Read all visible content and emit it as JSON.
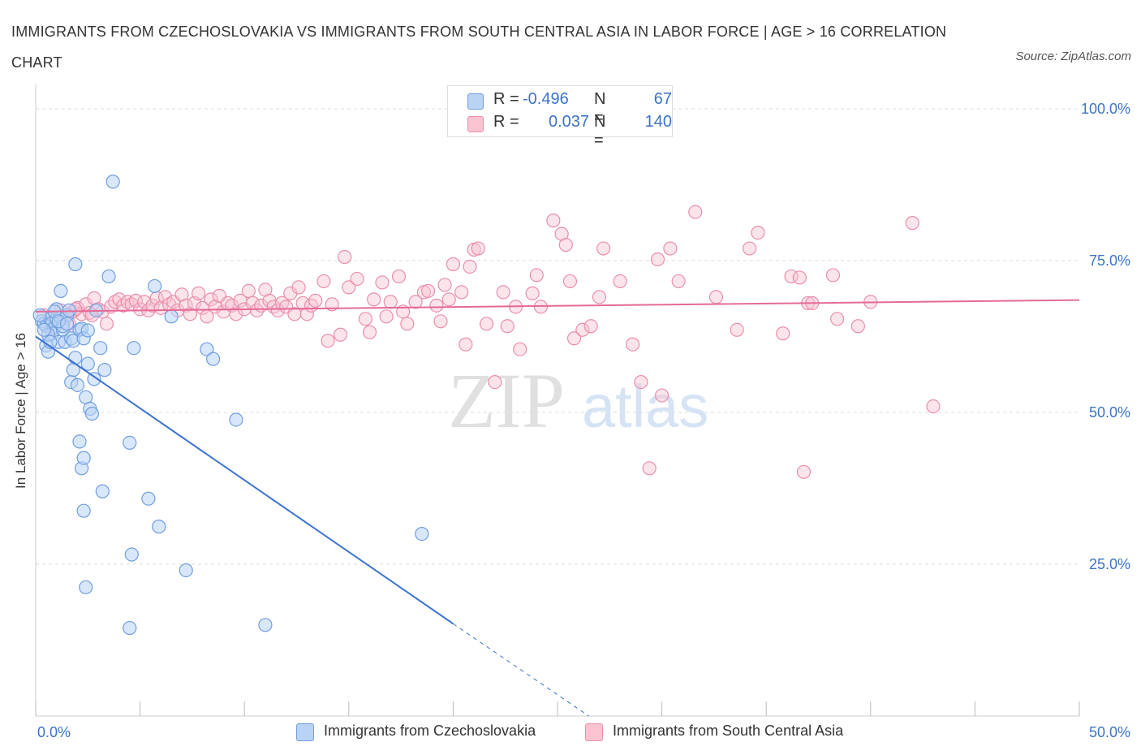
{
  "title": "IMMIGRANTS FROM CZECHOSLOVAKIA VS IMMIGRANTS FROM SOUTH CENTRAL ASIA IN LABOR FORCE | AGE > 16 CORRELATION CHART",
  "source": "Source: ZipAtlas.com",
  "watermark": {
    "zip": "ZIP",
    "atlas": "atlas"
  },
  "legend": {
    "r_label": "R =",
    "n_label": "N =",
    "rows": [
      {
        "r": "-0.496",
        "n": "67",
        "fill": "#b9d3f5",
        "stroke": "#6f9ee0"
      },
      {
        "r": "0.037",
        "n": "140",
        "fill": "#f9c3d2",
        "stroke": "#ea8fab"
      }
    ]
  },
  "bottom_legend": [
    {
      "label": "Immigrants from Czechoslovakia",
      "fill": "#b9d3f5",
      "stroke": "#6f9ee0"
    },
    {
      "label": "Immigrants from South Central Asia",
      "fill": "#f9c3d2",
      "stroke": "#ea8fab"
    }
  ],
  "colors": {
    "blue_line": "#3a73d0",
    "pink_line": "#e56a96",
    "axis_text": "#3a73c9",
    "grid": "#dddddd"
  },
  "chart_data": {
    "type": "scatter",
    "title": "IMMIGRANTS FROM CZECHOSLOVAKIA VS IMMIGRANTS FROM SOUTH CENTRAL ASIA IN LABOR FORCE | AGE > 16 CORRELATION CHART",
    "ylabel": "In Labor Force | Age > 16",
    "xlabel": "",
    "xlim": [
      0,
      50
    ],
    "ylim": [
      0,
      100
    ],
    "x_tick_labels": [
      "0.0%",
      "50.0%"
    ],
    "y_tick_values": [
      25,
      50,
      75,
      100
    ],
    "y_tick_labels": [
      "25.0%",
      "50.0%",
      "75.0%",
      "100.0%"
    ],
    "grid": "horizontal dashed",
    "series": [
      {
        "name": "Immigrants from Czechoslovakia",
        "color": "#6f9ee0",
        "trend": {
          "x": [
            0.0,
            20.0
          ],
          "y": [
            62.5,
            15.2
          ],
          "dashed_to": [
            26.5,
            0.0
          ]
        },
        "points": [
          [
            0.3,
            65.0
          ],
          [
            0.4,
            64.6
          ],
          [
            0.5,
            64.2
          ],
          [
            0.7,
            65.4
          ],
          [
            0.8,
            64.8
          ],
          [
            0.9,
            64.0
          ],
          [
            1.0,
            65.3
          ],
          [
            0.5,
            61.0
          ],
          [
            0.6,
            60.0
          ],
          [
            0.8,
            63.0
          ],
          [
            1.0,
            67.0
          ],
          [
            1.1,
            61.6
          ],
          [
            1.2,
            65.6
          ],
          [
            1.3,
            63.6
          ],
          [
            1.4,
            61.6
          ],
          [
            1.5,
            66.0
          ],
          [
            1.6,
            66.8
          ],
          [
            1.2,
            70.0
          ],
          [
            1.7,
            62.2
          ],
          [
            1.8,
            61.8
          ],
          [
            1.7,
            55.0
          ],
          [
            1.8,
            57.0
          ],
          [
            1.9,
            59.0
          ],
          [
            2.0,
            54.5
          ],
          [
            1.9,
            74.4
          ],
          [
            2.1,
            63.6
          ],
          [
            2.2,
            63.8
          ],
          [
            2.3,
            62.2
          ],
          [
            2.5,
            63.5
          ],
          [
            2.4,
            52.5
          ],
          [
            2.5,
            58.0
          ],
          [
            2.6,
            50.6
          ],
          [
            2.7,
            49.8
          ],
          [
            2.8,
            55.5
          ],
          [
            2.9,
            66.8
          ],
          [
            3.1,
            60.6
          ],
          [
            3.3,
            57.0
          ],
          [
            2.1,
            45.2
          ],
          [
            2.2,
            40.8
          ],
          [
            2.3,
            42.5
          ],
          [
            2.3,
            33.8
          ],
          [
            3.2,
            37.0
          ],
          [
            3.5,
            72.4
          ],
          [
            3.7,
            88.0
          ],
          [
            4.5,
            45.0
          ],
          [
            4.7,
            60.6
          ],
          [
            4.6,
            26.6
          ],
          [
            4.5,
            14.5
          ],
          [
            5.4,
            35.8
          ],
          [
            5.7,
            70.8
          ],
          [
            5.9,
            31.2
          ],
          [
            6.5,
            65.8
          ],
          [
            7.2,
            24.0
          ],
          [
            8.2,
            60.4
          ],
          [
            8.5,
            58.8
          ],
          [
            9.6,
            48.8
          ],
          [
            11.0,
            15.0
          ],
          [
            18.5,
            30.0
          ],
          [
            2.4,
            21.2
          ],
          [
            0.9,
            66.6
          ],
          [
            1.3,
            64.2
          ],
          [
            0.6,
            62.8
          ],
          [
            1.1,
            65.0
          ],
          [
            0.2,
            66.0
          ],
          [
            0.4,
            63.6
          ],
          [
            0.7,
            61.6
          ],
          [
            1.5,
            64.6
          ]
        ]
      },
      {
        "name": "Immigrants from South Central Asia",
        "color": "#ea8fab",
        "trend": {
          "x": [
            0.0,
            50.0
          ],
          "y": [
            66.6,
            68.5
          ]
        },
        "points": [
          [
            0.4,
            66.0
          ],
          [
            0.6,
            64.2
          ],
          [
            0.8,
            63.8
          ],
          [
            1.0,
            65.2
          ],
          [
            1.2,
            66.8
          ],
          [
            1.4,
            65.4
          ],
          [
            1.6,
            64.6
          ],
          [
            1.8,
            66.6
          ],
          [
            2.0,
            67.2
          ],
          [
            2.2,
            66.2
          ],
          [
            2.4,
            67.8
          ],
          [
            2.6,
            66.4
          ],
          [
            2.8,
            68.8
          ],
          [
            3.0,
            67.0
          ],
          [
            3.2,
            66.6
          ],
          [
            3.4,
            64.6
          ],
          [
            3.6,
            67.4
          ],
          [
            3.8,
            68.2
          ],
          [
            4.0,
            68.6
          ],
          [
            4.2,
            67.6
          ],
          [
            4.4,
            68.2
          ],
          [
            4.6,
            67.8
          ],
          [
            4.8,
            68.4
          ],
          [
            5.0,
            67.0
          ],
          [
            5.2,
            68.2
          ],
          [
            5.4,
            66.8
          ],
          [
            5.6,
            67.6
          ],
          [
            5.8,
            68.8
          ],
          [
            6.0,
            67.2
          ],
          [
            6.2,
            69.0
          ],
          [
            6.4,
            67.8
          ],
          [
            6.6,
            68.2
          ],
          [
            6.8,
            66.8
          ],
          [
            7.0,
            69.4
          ],
          [
            7.2,
            67.6
          ],
          [
            7.4,
            66.2
          ],
          [
            7.6,
            68.0
          ],
          [
            7.8,
            69.6
          ],
          [
            8.0,
            67.2
          ],
          [
            8.2,
            65.8
          ],
          [
            8.4,
            68.6
          ],
          [
            8.6,
            67.4
          ],
          [
            8.8,
            69.2
          ],
          [
            9.0,
            66.6
          ],
          [
            9.2,
            68.0
          ],
          [
            9.4,
            67.6
          ],
          [
            9.6,
            66.2
          ],
          [
            9.8,
            68.4
          ],
          [
            10.0,
            67.0
          ],
          [
            10.2,
            70.0
          ],
          [
            10.4,
            68.0
          ],
          [
            10.6,
            66.8
          ],
          [
            10.8,
            67.6
          ],
          [
            11.0,
            70.2
          ],
          [
            11.2,
            68.4
          ],
          [
            11.4,
            67.4
          ],
          [
            11.6,
            66.8
          ],
          [
            11.8,
            68.0
          ],
          [
            12.0,
            67.4
          ],
          [
            12.2,
            69.6
          ],
          [
            12.4,
            66.2
          ],
          [
            12.6,
            70.6
          ],
          [
            12.8,
            68.0
          ],
          [
            13.0,
            66.2
          ],
          [
            13.2,
            67.6
          ],
          [
            13.4,
            68.4
          ],
          [
            13.8,
            71.6
          ],
          [
            14.0,
            61.8
          ],
          [
            14.2,
            67.8
          ],
          [
            14.6,
            62.8
          ],
          [
            14.8,
            75.6
          ],
          [
            15.0,
            70.6
          ],
          [
            15.4,
            72.0
          ],
          [
            15.8,
            65.4
          ],
          [
            16.0,
            63.2
          ],
          [
            16.2,
            68.6
          ],
          [
            16.6,
            71.4
          ],
          [
            16.8,
            65.8
          ],
          [
            17.0,
            68.2
          ],
          [
            17.4,
            72.4
          ],
          [
            17.6,
            66.6
          ],
          [
            17.8,
            64.6
          ],
          [
            18.2,
            68.2
          ],
          [
            18.6,
            69.8
          ],
          [
            18.8,
            70.0
          ],
          [
            19.2,
            67.6
          ],
          [
            19.4,
            65.0
          ],
          [
            19.6,
            71.0
          ],
          [
            19.8,
            68.6
          ],
          [
            20.0,
            74.4
          ],
          [
            20.4,
            69.8
          ],
          [
            20.6,
            61.2
          ],
          [
            20.8,
            74.0
          ],
          [
            21.0,
            76.8
          ],
          [
            21.2,
            77.0
          ],
          [
            21.6,
            64.6
          ],
          [
            22.0,
            55.0
          ],
          [
            22.4,
            69.8
          ],
          [
            22.6,
            64.2
          ],
          [
            23.0,
            67.4
          ],
          [
            23.2,
            60.4
          ],
          [
            23.8,
            69.6
          ],
          [
            24.0,
            72.6
          ],
          [
            24.2,
            67.4
          ],
          [
            24.8,
            81.6
          ],
          [
            25.2,
            79.4
          ],
          [
            25.4,
            77.6
          ],
          [
            25.6,
            71.6
          ],
          [
            25.8,
            62.2
          ],
          [
            26.2,
            63.6
          ],
          [
            26.6,
            64.2
          ],
          [
            27.0,
            69.0
          ],
          [
            27.2,
            77.0
          ],
          [
            28.0,
            71.6
          ],
          [
            28.6,
            61.2
          ],
          [
            29.0,
            55.0
          ],
          [
            29.4,
            40.8
          ],
          [
            29.8,
            75.2
          ],
          [
            30.0,
            52.8
          ],
          [
            30.4,
            77.0
          ],
          [
            30.8,
            71.6
          ],
          [
            31.6,
            83.0
          ],
          [
            32.6,
            69.0
          ],
          [
            33.6,
            63.6
          ],
          [
            34.2,
            77.0
          ],
          [
            34.6,
            79.6
          ],
          [
            35.8,
            63.0
          ],
          [
            36.2,
            72.4
          ],
          [
            36.6,
            72.2
          ],
          [
            36.8,
            40.2
          ],
          [
            37.0,
            68.0
          ],
          [
            37.2,
            68.0
          ],
          [
            38.2,
            72.6
          ],
          [
            38.4,
            65.4
          ],
          [
            39.4,
            64.2
          ],
          [
            40.0,
            68.2
          ],
          [
            42.0,
            81.2
          ],
          [
            43.0,
            51.0
          ],
          [
            1.9,
            67.0
          ],
          [
            2.7,
            66.0
          ]
        ]
      }
    ]
  }
}
